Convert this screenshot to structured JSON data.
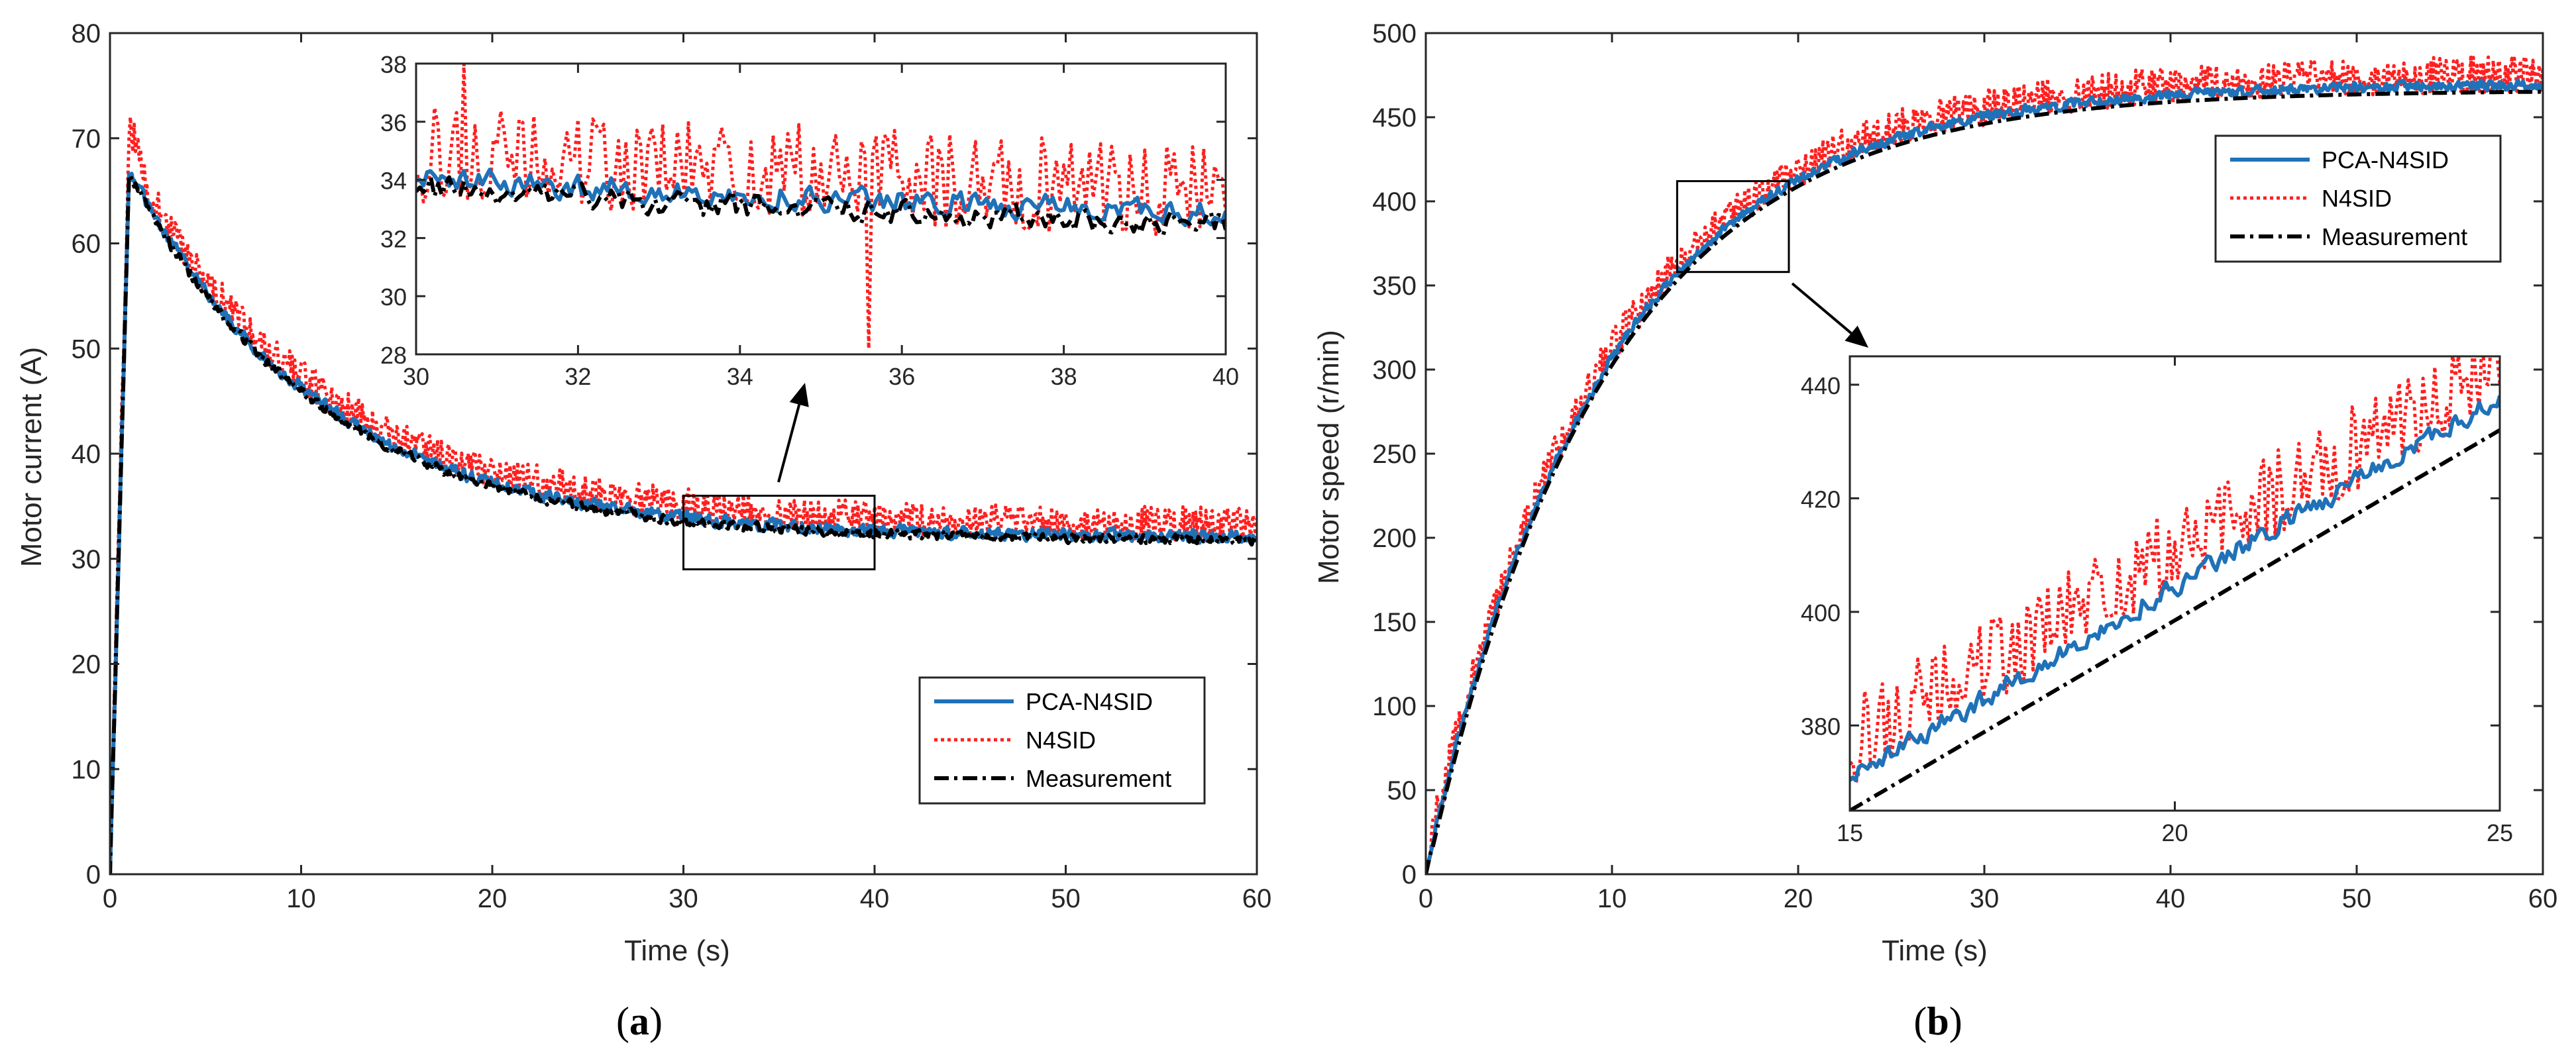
{
  "figure": {
    "caption_a": "a",
    "caption_b": "b"
  },
  "legend_labels": [
    "PCA-N4SID",
    "N4SID",
    "Measurement"
  ],
  "colors": {
    "pca": "#1f72b8",
    "n4sid": "#ff1f1f",
    "meas": "#000000",
    "axis": "#262626"
  },
  "chart_data": [
    {
      "id": "a-main",
      "type": "line",
      "title": "",
      "xlabel": "Time (s)",
      "ylabel": "Motor current (A)",
      "xlim": [
        0,
        60
      ],
      "ylim": [
        0,
        80
      ],
      "xticks": [
        0,
        10,
        20,
        30,
        40,
        50,
        60
      ],
      "yticks": [
        0,
        10,
        20,
        30,
        40,
        50,
        60,
        70,
        80
      ],
      "legend_position": "bottom-right",
      "model": "current",
      "series": [
        {
          "name": "PCA-N4SID",
          "style": "solid",
          "noise": 0.8,
          "bias": 0
        },
        {
          "name": "N4SID",
          "style": "dotted",
          "noise": 1.6,
          "bias": 1.2,
          "peak": 70.5
        },
        {
          "name": "Measurement",
          "style": "dashdot",
          "noise": 0.6,
          "bias": -0.3
        }
      ],
      "zoom_box": {
        "x": [
          30,
          40
        ],
        "y": [
          29,
          36
        ]
      }
    },
    {
      "id": "a-inset",
      "type": "line",
      "xlim": [
        30,
        40
      ],
      "ylim": [
        28,
        38
      ],
      "xticks": [
        30,
        32,
        34,
        36,
        38,
        40
      ],
      "yticks": [
        28,
        30,
        32,
        34,
        36,
        38
      ],
      "model": "current",
      "series": [
        {
          "name": "PCA-N4SID",
          "style": "solid",
          "noise": 0.6,
          "bias": 0.2
        },
        {
          "name": "N4SID",
          "style": "dotted",
          "noise": 1.7,
          "bias": 1.0,
          "spikes": [
            [
              30.6,
              38
            ],
            [
              35.6,
              28.2
            ],
            [
              35.9,
              35.7
            ]
          ]
        },
        {
          "name": "Measurement",
          "style": "dashdot",
          "noise": 0.6,
          "bias": -0.2
        }
      ]
    },
    {
      "id": "b-main",
      "type": "line",
      "title": "",
      "xlabel": "Time (s)",
      "ylabel": "Motor speed (r/min)",
      "xlim": [
        0,
        60
      ],
      "ylim": [
        0,
        500
      ],
      "xticks": [
        0,
        10,
        20,
        30,
        40,
        50,
        60
      ],
      "yticks": [
        0,
        50,
        100,
        150,
        200,
        250,
        300,
        350,
        400,
        450,
        500
      ],
      "legend_position": "top-right",
      "model": "speed",
      "series": [
        {
          "name": "PCA-N4SID",
          "style": "solid",
          "noise": 4,
          "bias": 2
        },
        {
          "name": "N4SID",
          "style": "dotted",
          "noise": 11,
          "bias": 8
        },
        {
          "name": "Measurement",
          "style": "dashdot",
          "noise": 0,
          "bias": -2
        }
      ],
      "zoom_box": {
        "x": [
          13.5,
          19.5
        ],
        "y": [
          358,
          412
        ]
      }
    },
    {
      "id": "b-inset",
      "type": "line",
      "xlim": [
        15,
        25
      ],
      "ylim": [
        365,
        445
      ],
      "xticks": [
        15,
        20,
        25
      ],
      "yticks": [
        380,
        400,
        420,
        440
      ],
      "model": "speed-inset",
      "series": [
        {
          "name": "PCA-N4SID",
          "style": "solid",
          "noise": 2.5,
          "bias": 6
        },
        {
          "name": "N4SID",
          "style": "dotted",
          "noise": 8,
          "bias": 12
        },
        {
          "name": "Measurement",
          "style": "dashdot",
          "noise": 0,
          "bias": 0
        }
      ]
    }
  ]
}
